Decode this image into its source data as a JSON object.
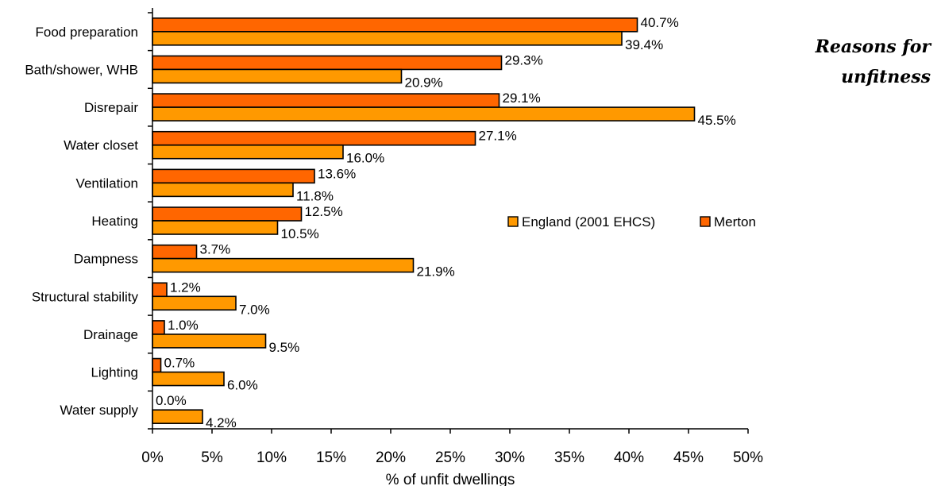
{
  "side_title": {
    "line1": "Reasons for",
    "line2": "unfitness"
  },
  "chart_data": {
    "type": "bar",
    "orientation": "horizontal",
    "categories": [
      "Food preparation",
      "Bath/shower, WHB",
      "Disrepair",
      "Water closet",
      "Ventilation",
      "Heating",
      "Dampness",
      "Structural stability",
      "Drainage",
      "Lighting",
      "Water supply"
    ],
    "series": [
      {
        "name": "Merton",
        "color": "#FF6600",
        "values": [
          40.7,
          29.3,
          29.1,
          27.1,
          13.6,
          12.5,
          3.7,
          1.2,
          1.0,
          0.7,
          0.0
        ],
        "labels": [
          "40.7%",
          "29.3%",
          "29.1%",
          "27.1%",
          "13.6%",
          "12.5%",
          "3.7%",
          "1.2%",
          "1.0%",
          "0.7%",
          "0.0%"
        ]
      },
      {
        "name": "England (2001 EHCS)",
        "color": "#FF9900",
        "values": [
          39.4,
          20.9,
          45.5,
          16.0,
          11.8,
          10.5,
          21.9,
          7.0,
          9.5,
          6.0,
          4.2
        ],
        "labels": [
          "39.4%",
          "20.9%",
          "45.5%",
          "16.0%",
          "11.8%",
          "10.5%",
          "21.9%",
          "7.0%",
          "9.5%",
          "6.0%",
          "4.2%"
        ]
      }
    ],
    "xlabel": "% of unfit dwellings",
    "xlim": [
      0,
      50
    ],
    "xticks": [
      "0%",
      "5%",
      "10%",
      "15%",
      "20%",
      "25%",
      "30%",
      "35%",
      "40%",
      "45%",
      "50%"
    ],
    "legend": {
      "placement": "right",
      "order": [
        "England (2001 EHCS)",
        "Merton"
      ]
    },
    "grid": false
  }
}
